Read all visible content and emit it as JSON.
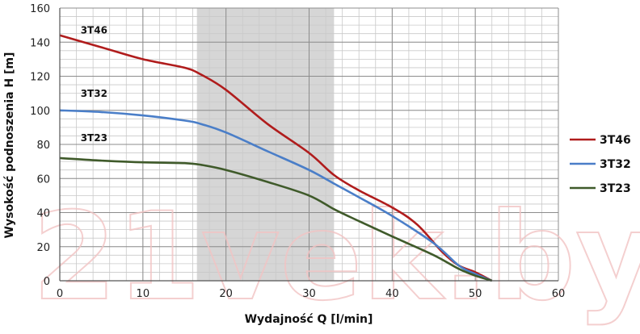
{
  "chart_data": {
    "type": "line",
    "xlabel": "Wydajność Q [l/min]",
    "ylabel": "Wysokość podnoszenia H [m]",
    "xlim": [
      0,
      60
    ],
    "ylim": [
      0,
      160
    ],
    "x_ticks": [
      0,
      10,
      20,
      30,
      40,
      50,
      60
    ],
    "y_ticks": [
      0,
      20,
      40,
      60,
      80,
      100,
      120,
      140,
      160
    ],
    "grid": true,
    "minor_grid_x_step": 2,
    "minor_grid_y_step": 5,
    "shaded_range_x": [
      16.5,
      33
    ],
    "legend_position": "right",
    "series": [
      {
        "name": "3T46",
        "color": "#b01c1c",
        "label_at": [
          2.5,
          145
        ],
        "points": [
          [
            0,
            144
          ],
          [
            5,
            137
          ],
          [
            10,
            130
          ],
          [
            15,
            125
          ],
          [
            17,
            121
          ],
          [
            20,
            112
          ],
          [
            25,
            92
          ],
          [
            30,
            75
          ],
          [
            33,
            62
          ],
          [
            36,
            53
          ],
          [
            40,
            43
          ],
          [
            43,
            33
          ],
          [
            46,
            17
          ],
          [
            48,
            9
          ],
          [
            50,
            5
          ],
          [
            52,
            0
          ]
        ]
      },
      {
        "name": "3T32",
        "color": "#4a7ec8",
        "label_at": [
          2.5,
          108
        ],
        "points": [
          [
            0,
            100
          ],
          [
            5,
            99
          ],
          [
            10,
            97
          ],
          [
            15,
            94
          ],
          [
            17,
            92
          ],
          [
            20,
            87
          ],
          [
            25,
            76
          ],
          [
            30,
            65
          ],
          [
            33,
            57
          ],
          [
            36,
            49
          ],
          [
            40,
            38
          ],
          [
            45,
            22
          ],
          [
            48,
            9
          ],
          [
            50,
            4
          ],
          [
            52,
            0
          ]
        ]
      },
      {
        "name": "3T23",
        "color": "#3f5a2a",
        "label_at": [
          2.5,
          82
        ],
        "points": [
          [
            0,
            72
          ],
          [
            5,
            70.5
          ],
          [
            10,
            69.5
          ],
          [
            15,
            69
          ],
          [
            17,
            68
          ],
          [
            20,
            65
          ],
          [
            25,
            58
          ],
          [
            30,
            50
          ],
          [
            33,
            42
          ],
          [
            36,
            35
          ],
          [
            40,
            26
          ],
          [
            45,
            15
          ],
          [
            48,
            7
          ],
          [
            50,
            3
          ],
          [
            52,
            0
          ]
        ]
      }
    ]
  },
  "watermark": "21vek.by"
}
